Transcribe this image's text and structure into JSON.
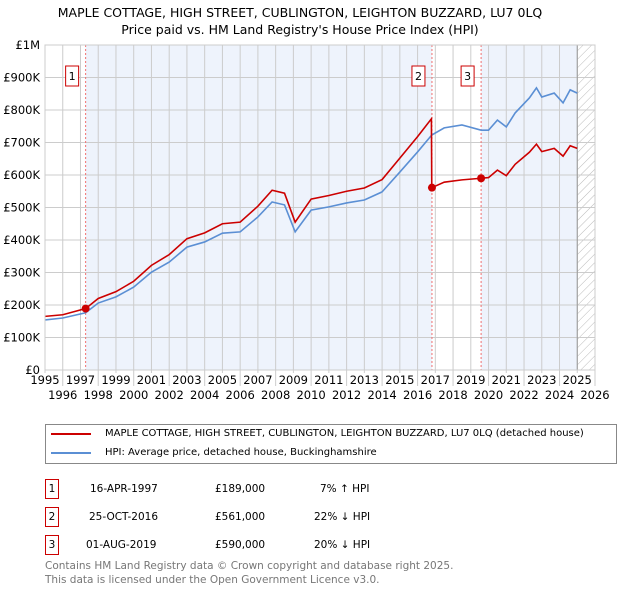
{
  "title_line1": "MAPLE COTTAGE, HIGH STREET, CUBLINGTON, LEIGHTON BUZZARD, LU7 0LQ",
  "title_line2": "Price paid vs. HM Land Registry's House Price Index (HPI)",
  "chart_data": {
    "type": "line",
    "xlim": [
      1995,
      2026
    ],
    "ylim": [
      0,
      1000000
    ],
    "x_ticks": [
      "1995",
      "1996",
      "1997",
      "1998",
      "1999",
      "2000",
      "2001",
      "2002",
      "2003",
      "2004",
      "2005",
      "2006",
      "2007",
      "2008",
      "2009",
      "2010",
      "2011",
      "2012",
      "2013",
      "2014",
      "2015",
      "2016",
      "2017",
      "2018",
      "2019",
      "2020",
      "2021",
      "2022",
      "2023",
      "2024",
      "2025",
      "2026"
    ],
    "y_ticks": [
      {
        "v": 0,
        "label": "£0"
      },
      {
        "v": 100000,
        "label": "£100K"
      },
      {
        "v": 200000,
        "label": "£200K"
      },
      {
        "v": 300000,
        "label": "£300K"
      },
      {
        "v": 400000,
        "label": "£400K"
      },
      {
        "v": 500000,
        "label": "£500K"
      },
      {
        "v": 600000,
        "label": "£600K"
      },
      {
        "v": 700000,
        "label": "£700K"
      },
      {
        "v": 800000,
        "label": "£800K"
      },
      {
        "v": 900000,
        "label": "£900K"
      },
      {
        "v": 1000000,
        "label": "£1M"
      }
    ],
    "grid": true,
    "series": [
      {
        "name": "MAPLE COTTAGE, HIGH STREET, CUBLINGTON, LEIGHTON BUZZARD, LU7 0LQ (detached house)",
        "color": "#cc0000",
        "x": [
          1995,
          1996,
          1997.29,
          1998,
          1999,
          2000,
          2001,
          2002,
          2003,
          2004,
          2005,
          2006,
          2007,
          2007.8,
          2008.5,
          2009.1,
          2010,
          2011,
          2012,
          2013,
          2014,
          2015,
          2016,
          2016.78,
          2016.8,
          2017.5,
          2018.5,
          2019.58,
          2020,
          2020.5,
          2021,
          2021.5,
          2022.3,
          2022.7,
          2023,
          2023.7,
          2024.2,
          2024.6,
          2025
        ],
        "y": [
          165000,
          170000,
          189000,
          220000,
          241000,
          273000,
          322000,
          355000,
          404000,
          422000,
          450000,
          455000,
          504000,
          553000,
          544000,
          455000,
          526000,
          537000,
          550000,
          560000,
          586000,
          652000,
          718000,
          773000,
          561000,
          578000,
          585000,
          590000,
          592000,
          615000,
          598000,
          633000,
          670000,
          695000,
          672000,
          682000,
          658000,
          690000,
          682000
        ]
      },
      {
        "name": "HPI: Average price, detached house, Buckinghamshire",
        "color": "#5b8fd4",
        "x": [
          1995,
          1996,
          1997.29,
          1998,
          1999,
          2000,
          2001,
          2002,
          2003,
          2004,
          2005,
          2006,
          2007,
          2007.8,
          2008.5,
          2009.1,
          2010,
          2011,
          2012,
          2013,
          2014,
          2015,
          2016,
          2016.8,
          2017.5,
          2018.5,
          2019.58,
          2020,
          2020.5,
          2021,
          2021.5,
          2022.3,
          2022.7,
          2023,
          2023.7,
          2024.2,
          2024.6,
          2025
        ],
        "y": [
          154000,
          160000,
          176000,
          206000,
          225000,
          255000,
          301000,
          332000,
          378000,
          394000,
          421000,
          425000,
          471000,
          517000,
          508000,
          425000,
          492000,
          502000,
          514000,
          523000,
          548000,
          609000,
          671000,
          723000,
          745000,
          754000,
          738000,
          738000,
          769000,
          748000,
          791000,
          837000,
          868000,
          840000,
          852000,
          822000,
          862000,
          852000
        ]
      }
    ],
    "annotations": [
      {
        "label": "1",
        "x": 1997.29,
        "y": 189000
      },
      {
        "label": "2",
        "x": 2016.81,
        "y": 561000
      },
      {
        "label": "3",
        "x": 2019.58,
        "y": 590000
      }
    ],
    "shaded_until": 2025.0
  },
  "legend": [
    {
      "label": "MAPLE COTTAGE, HIGH STREET, CUBLINGTON, LEIGHTON BUZZARD, LU7 0LQ (detached house)",
      "color": "#cc0000"
    },
    {
      "label": "HPI: Average price, detached house, Buckinghamshire",
      "color": "#5b8fd4"
    }
  ],
  "transactions": [
    {
      "num": "1",
      "date": "16-APR-1997",
      "price": "£189,000",
      "hpi": "7% ↑ HPI"
    },
    {
      "num": "2",
      "date": "25-OCT-2016",
      "price": "£561,000",
      "hpi": "22% ↓ HPI"
    },
    {
      "num": "3",
      "date": "01-AUG-2019",
      "price": "£590,000",
      "hpi": "20% ↓ HPI"
    }
  ],
  "footer": [
    "Contains HM Land Registry data © Crown copyright and database right 2025.",
    "This data is licensed under the Open Government Licence v3.0."
  ]
}
